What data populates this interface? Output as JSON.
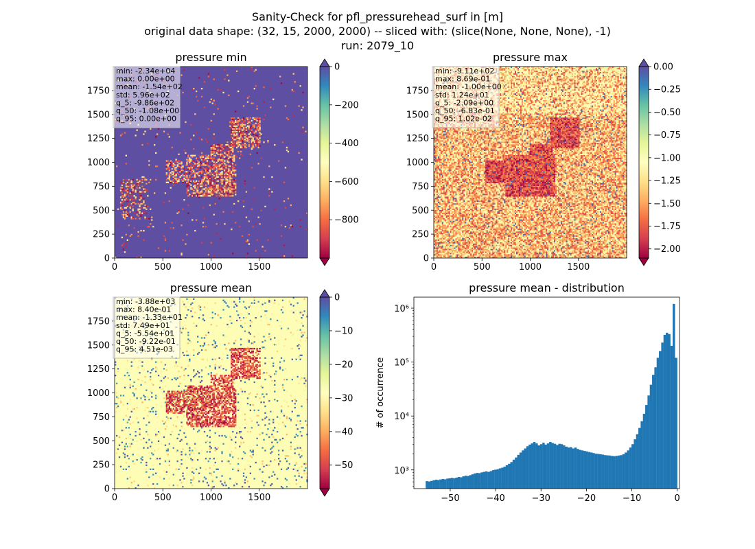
{
  "suptitle": {
    "line1": "Sanity-Check for pfl_pressurehead_surf in [m]",
    "line2": "original data shape: (32, 15, 2000, 2000) -- sliced with: (slice(None, None, None), -1)",
    "line3": "run: 2079_10"
  },
  "chart_data": [
    {
      "type": "heatmap",
      "title": "pressure min",
      "colormap": "Spectral",
      "colormap_stops": [
        "#9e0142",
        "#d53e4f",
        "#f46d43",
        "#fdae61",
        "#fee08b",
        "#ffffbf",
        "#e6f598",
        "#abdda4",
        "#66c2a5",
        "#3288bd",
        "#5e4fa2"
      ],
      "background_color": "#5e4fa2",
      "x_range": [
        0,
        2000
      ],
      "y_range": [
        0,
        2000
      ],
      "x_ticks": [
        "0",
        "500",
        "1000",
        "1500"
      ],
      "y_ticks": [
        "0",
        "250",
        "500",
        "750",
        "1000",
        "1250",
        "1500",
        "1750"
      ],
      "colorbar": {
        "min": -1000,
        "max": 0,
        "ticks": [
          "0",
          "−200",
          "−400",
          "−600",
          "−800"
        ],
        "extend": "both"
      },
      "stats": [
        "min: -2.34e+04",
        "max: 0.00e+00",
        "mean: -1.54e+02",
        "std: 5.96e+02",
        "q_5: -9.86e+02",
        "q_50: -1.08e+00",
        "q_95: 0.00e+00"
      ]
    },
    {
      "type": "heatmap",
      "title": "pressure max",
      "colormap": "Spectral",
      "colormap_stops": [
        "#9e0142",
        "#d53e4f",
        "#f46d43",
        "#fdae61",
        "#fee08b",
        "#ffffbf",
        "#e6f598",
        "#abdda4",
        "#66c2a5",
        "#3288bd",
        "#5e4fa2"
      ],
      "background_color": "#f3a060",
      "x_range": [
        0,
        2000
      ],
      "y_range": [
        0,
        2000
      ],
      "x_ticks": [
        "0",
        "500",
        "1000",
        "1500"
      ],
      "y_ticks": [
        "0",
        "250",
        "500",
        "750",
        "1000",
        "1250",
        "1500",
        "1750"
      ],
      "colorbar": {
        "min": -2.1,
        "max": 0.0,
        "ticks": [
          "0.00",
          "−0.25",
          "−0.50",
          "−0.75",
          "−1.00",
          "−1.25",
          "−1.50",
          "−1.75",
          "−2.00"
        ],
        "extend": "both"
      },
      "stats": [
        "min: -9.11e+02",
        "max: 8.69e-01",
        "mean: -1.00e+00",
        "std: 1.24e+01",
        "q_5: -2.09e+00",
        "q_50: -6.83e-01",
        "q_95: 1.02e-02"
      ]
    },
    {
      "type": "heatmap",
      "title": "pressure mean",
      "colormap": "Spectral",
      "colormap_stops": [
        "#9e0142",
        "#d53e4f",
        "#f46d43",
        "#fdae61",
        "#fee08b",
        "#ffffbf",
        "#e6f598",
        "#abdda4",
        "#66c2a5",
        "#3288bd",
        "#5e4fa2"
      ],
      "background_color": "#fefdb5",
      "x_range": [
        0,
        2000
      ],
      "y_range": [
        0,
        2000
      ],
      "x_ticks": [
        "0",
        "500",
        "1000",
        "1500"
      ],
      "y_ticks": [
        "0",
        "250",
        "500",
        "750",
        "1000",
        "1250",
        "1500",
        "1750"
      ],
      "colorbar": {
        "min": -57,
        "max": 0,
        "ticks": [
          "0",
          "−10",
          "−20",
          "−30",
          "−40",
          "−50"
        ],
        "extend": "both"
      },
      "stats": [
        "min: -3.88e+03",
        "max: 8.40e-01",
        "mean: -1.33e+01",
        "std: 7.49e+01",
        "q_5: -5.54e+01",
        "q_50: -9.22e-01",
        "q_95: 4.51e-03"
      ]
    },
    {
      "type": "bar",
      "title": "pressure mean - distribution",
      "xlabel": "",
      "ylabel": "# of occurrence",
      "yscale": "log",
      "bar_color": "#1f77b4",
      "xlim": [
        -58,
        0.5
      ],
      "ylim": [
        450,
        1600000
      ],
      "x_ticks": [
        -50,
        -40,
        -30,
        -20,
        -10,
        0
      ],
      "x_tick_labels": [
        "−50",
        "−40",
        "−30",
        "−20",
        "−10",
        "0"
      ],
      "y_ticks": [
        1000,
        10000,
        100000,
        1000000
      ],
      "y_tick_labels": [
        "10³",
        "10⁴",
        "10⁵",
        "10⁶"
      ],
      "bin_edges_range": [
        -55.4,
        0.0
      ],
      "counts": [
        620,
        610,
        625,
        640,
        660,
        650,
        665,
        680,
        670,
        690,
        700,
        710,
        700,
        720,
        740,
        730,
        760,
        780,
        770,
        800,
        830,
        860,
        880,
        870,
        900,
        920,
        940,
        920,
        950,
        990,
        1010,
        1030,
        1070,
        1100,
        1150,
        1220,
        1300,
        1400,
        1550,
        1700,
        1900,
        2100,
        2300,
        2500,
        2750,
        2950,
        3100,
        3300,
        3100,
        2850,
        3000,
        3200,
        2950,
        3100,
        3300,
        3150,
        3050,
        2900,
        3050,
        3000,
        2850,
        2700,
        2600,
        2650,
        2500,
        2600,
        2450,
        2350,
        2300,
        2250,
        2200,
        2150,
        2100,
        2050,
        2000,
        1980,
        1950,
        1920,
        1880,
        1860,
        1850,
        1820,
        1800,
        1820,
        1850,
        1880,
        1950,
        2100,
        2300,
        2600,
        3000,
        3700,
        4600,
        6000,
        8000,
        11000,
        16000,
        24000,
        38000,
        58000,
        80000,
        120000,
        160000,
        230000,
        320000,
        350000,
        330000,
        200000,
        1200000,
        120000
      ]
    }
  ]
}
